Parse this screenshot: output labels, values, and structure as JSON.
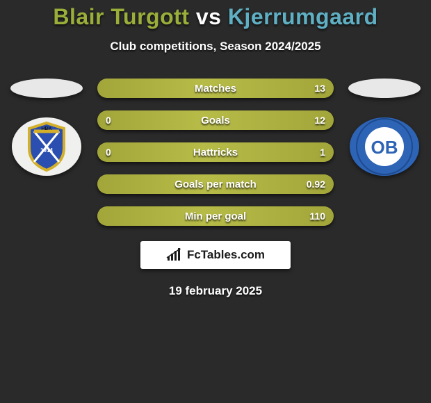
{
  "header": {
    "title_left": "Blair Turgott",
    "vs_word": "vs",
    "title_right": "Kjerrumgaard",
    "title_color_left": "#9aaf3a",
    "vs_color": "#ffffff",
    "title_color_right": "#5fb0c4",
    "subtitle": "Club competitions, Season 2024/2025",
    "subtitle_color": "#ffffff"
  },
  "left_team": {
    "oval_color": "#e8e8e8",
    "logo_bg": "#f0f0ee",
    "logo_shield_fill": "#2a4fb0",
    "logo_shield_stroke": "#d4af2a",
    "logo_text": "HBK",
    "logo_year": "1914"
  },
  "right_team": {
    "oval_color": "#e8e8e8",
    "logo_bg": "#2e64b5",
    "logo_inner": "#ffffff",
    "logo_text": "OB"
  },
  "stats": {
    "bar_base_color": "#a2a63a",
    "bar_highlight_color": "#c8cc52",
    "label_color": "#ffffff",
    "value_color": "#ffffff",
    "rows": [
      {
        "label": "Matches",
        "left": "",
        "right": "13",
        "left_pct": 0,
        "right_pct": 100
      },
      {
        "label": "Goals",
        "left": "0",
        "right": "12",
        "left_pct": 0,
        "right_pct": 100
      },
      {
        "label": "Hattricks",
        "left": "0",
        "right": "1",
        "left_pct": 0,
        "right_pct": 100
      },
      {
        "label": "Goals per match",
        "left": "",
        "right": "0.92",
        "left_pct": 0,
        "right_pct": 100
      },
      {
        "label": "Min per goal",
        "left": "",
        "right": "110",
        "left_pct": 0,
        "right_pct": 100
      }
    ]
  },
  "brand": {
    "text": "FcTables.com",
    "box_bg": "#ffffff",
    "icon_color": "#1a1a1a"
  },
  "footer": {
    "date": "19 february 2025",
    "date_color": "#ffffff"
  },
  "page": {
    "background_color": "#2a2a2a"
  }
}
